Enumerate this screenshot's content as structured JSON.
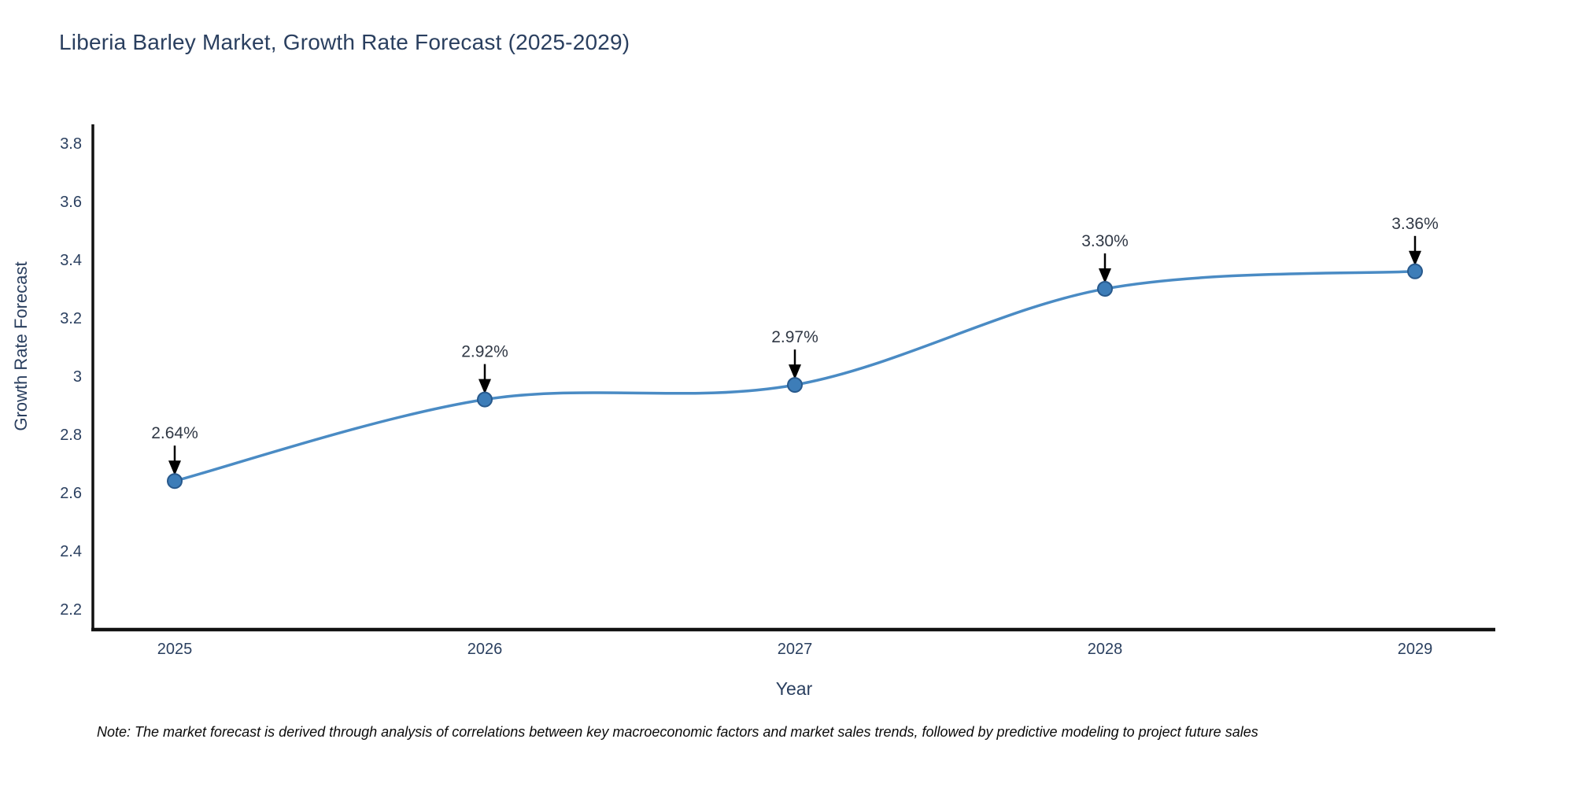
{
  "header": {
    "title": "Liberia Barley Market, Growth Rate Forecast (2025-2029)"
  },
  "chart_data": {
    "type": "line",
    "title": "Liberia Barley Market, Growth Rate Forecast (2025-2029)",
    "xlabel": "Year",
    "ylabel": "Growth Rate Forecast",
    "categories": [
      "2025",
      "2026",
      "2027",
      "2028",
      "2029"
    ],
    "series": [
      {
        "name": "Growth Rate Forecast",
        "values": [
          2.64,
          2.92,
          2.97,
          3.3,
          3.36
        ]
      }
    ],
    "point_labels": [
      "2.64%",
      "2.92%",
      "2.97%",
      "3.30%",
      "3.36%"
    ],
    "yticks": [
      3.8,
      3.6,
      3.4,
      3.2,
      3,
      2.8,
      2.6,
      2.4,
      2.2
    ],
    "ylim": [
      2.1,
      3.87
    ],
    "line_shape": "spline",
    "grid": false,
    "legend_visible": false,
    "annotation_arrows": true,
    "colors": {
      "line": "#4a8bc4",
      "marker_fill": "#3d7db8",
      "marker_edge": "#28598c",
      "axis_line": "#111111",
      "tick_text": "#2a3f5f",
      "annotation_text": "#303845",
      "arrow": "#000000",
      "title_text": "#2a3f5f"
    }
  },
  "footnote": {
    "text": "Note: The market forecast is derived through analysis of correlations between key macroeconomic factors and market sales trends, followed by predictive modeling to project future sales"
  }
}
